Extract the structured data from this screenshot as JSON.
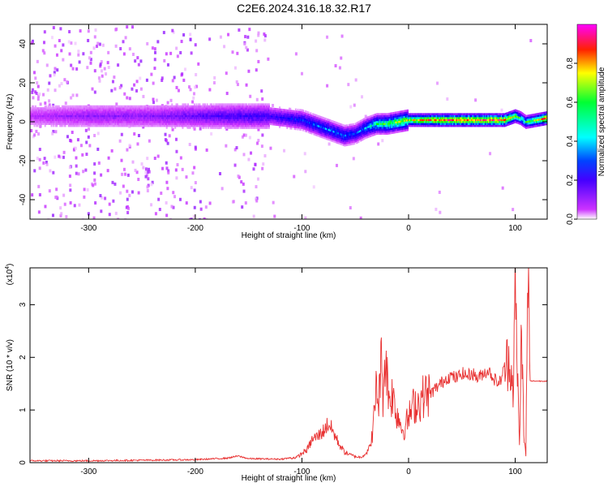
{
  "title": "C2E6.2024.316.18.32.R17",
  "chart_data": [
    {
      "type": "heatmap",
      "title": "C2E6.2024.316.18.32.R17",
      "xlabel": "Height of straight line (km)",
      "ylabel": "Frequency (Hz)",
      "xlim": [
        -355,
        130
      ],
      "ylim": [
        -50,
        50
      ],
      "x_ticks": [
        -300,
        -200,
        -100,
        0,
        100
      ],
      "y_ticks": [
        -40,
        -20,
        0,
        20,
        40
      ],
      "colorbar": {
        "label": "Normalized spectral amplitude",
        "range": [
          0.0,
          1.0
        ],
        "ticks": [
          "0.0",
          "0.2",
          "0.4",
          "0.6",
          "0.8"
        ],
        "colormap": [
          "#ffffff",
          "#cc33ff",
          "#5500ff",
          "#0000ff",
          "#00ffff",
          "#00ff00",
          "#ffff00",
          "#ff0000",
          "#ff00ff"
        ]
      },
      "ridge": {
        "x": [
          -355,
          -300,
          -250,
          -200,
          -150,
          -130,
          -100,
          -80,
          -60,
          -50,
          -40,
          -30,
          -20,
          0,
          20,
          50,
          90,
          100,
          105,
          110,
          130
        ],
        "freq": [
          3,
          3,
          3,
          3,
          3,
          3,
          1,
          -3,
          -7,
          -6,
          -3,
          -1,
          -1,
          1,
          1,
          1,
          1,
          3,
          2,
          0,
          2
        ],
        "amplitude": [
          0.15,
          0.2,
          0.2,
          0.25,
          0.3,
          0.3,
          0.4,
          0.45,
          0.45,
          0.4,
          0.5,
          0.6,
          0.65,
          0.75,
          0.85,
          0.9,
          0.9,
          0.7,
          0.6,
          0.6,
          0.9
        ]
      }
    },
    {
      "type": "line",
      "xlabel": "Height of straight line (km)",
      "ylabel": "SNR (10 * v/v)",
      "y_multiplier": "(x10⁴)",
      "y_multiplier_base": "(x10",
      "y_multiplier_exp": "4",
      "y_multiplier_close": ")",
      "xlim": [
        -355,
        130
      ],
      "ylim": [
        0,
        3.7
      ],
      "x_ticks": [
        -300,
        -200,
        -100,
        0,
        100
      ],
      "y_ticks": [
        0,
        1,
        2,
        3
      ],
      "color": "#e83030",
      "series": [
        {
          "x": [
            -355,
            -300,
            -250,
            -200,
            -170,
            -160,
            -150,
            -120,
            -105,
            -95,
            -90,
            -85,
            -80,
            -75,
            -70,
            -65,
            -60,
            -55,
            -50,
            -45,
            -40,
            -36,
            -33,
            -30,
            -28,
            -26,
            -24,
            -22,
            -20,
            -18,
            -15,
            -12,
            -10,
            -5,
            0,
            5,
            10,
            15,
            20,
            25,
            30,
            35,
            40,
            45,
            50,
            55,
            60,
            65,
            70,
            75,
            80,
            85,
            90,
            95,
            98,
            100,
            102,
            104,
            106,
            108,
            110,
            112,
            114,
            116,
            130
          ],
          "y": [
            0.03,
            0.03,
            0.04,
            0.05,
            0.08,
            0.12,
            0.07,
            0.06,
            0.1,
            0.25,
            0.45,
            0.5,
            0.6,
            0.75,
            0.55,
            0.35,
            0.2,
            0.15,
            0.12,
            0.1,
            0.18,
            0.3,
            0.7,
            1.5,
            1.1,
            2.0,
            1.3,
            2.1,
            1.6,
            1.2,
            1.3,
            1.0,
            0.9,
            0.6,
            0.85,
            1.1,
            1.15,
            1.3,
            1.3,
            1.4,
            1.5,
            1.6,
            1.65,
            1.6,
            1.7,
            1.65,
            1.7,
            1.6,
            1.7,
            1.75,
            1.6,
            1.5,
            1.8,
            2.0,
            1.4,
            3.2,
            1.8,
            0.3,
            2.8,
            0.5,
            0.15,
            3.7,
            1.55,
            1.55,
            1.55
          ]
        }
      ]
    }
  ]
}
